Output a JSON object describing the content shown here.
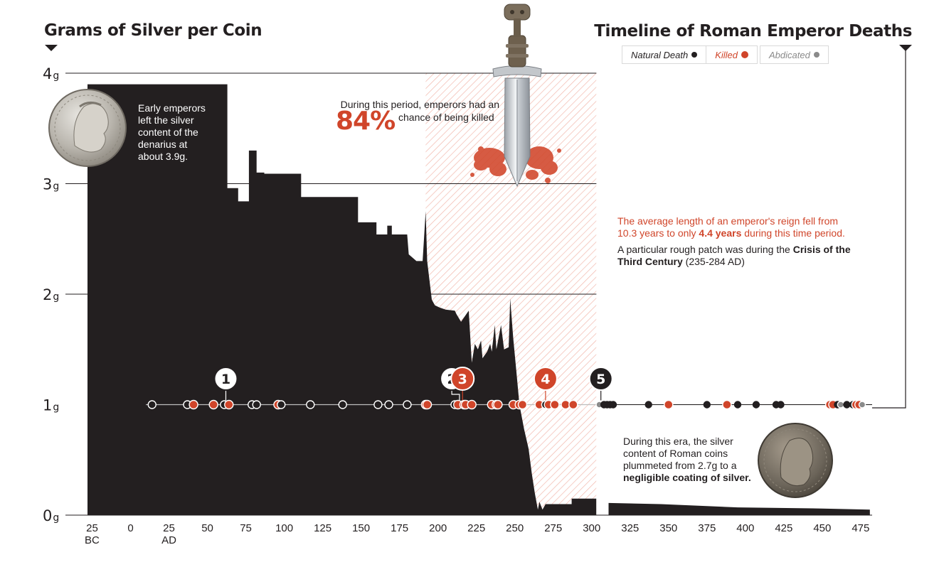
{
  "titles": {
    "left": "Grams of Silver per Coin",
    "right": "Timeline of Roman Emperor Deaths"
  },
  "legend": {
    "natural": "Natural Death",
    "killed": "Killed",
    "abdicated": "Abdicated"
  },
  "colors": {
    "area": "#231f20",
    "killed": "#d0452a",
    "natural": "#231f20",
    "abdicated": "#8a8a8a",
    "hatch": "#f2b8ad"
  },
  "annotations": {
    "early": "Early emperors left the silver content of the denarius at about 3.9g.",
    "period_line1": "During this period, emperors had an",
    "period_pct": "84%",
    "period_line2": "chance of being killed",
    "reign_red_a": "The average length of an emperor's reign fell from 10.3 years to only ",
    "reign_red_b": "4.4 years",
    "reign_red_c": " during this time period.",
    "crisis_a": "A particular rough patch was during the ",
    "crisis_b": "Crisis of the Third Century",
    "crisis_c": " (235-284 AD)",
    "era_a": "During this era, the silver content of Roman coins plummeted from 2.7g to a ",
    "era_b": "negligible coating of silver."
  },
  "markers": [
    {
      "label": "1",
      "year": 62,
      "style": "white"
    },
    {
      "label": "2",
      "year": 209,
      "style": "white"
    },
    {
      "label": "3",
      "year": 216,
      "style": "red"
    },
    {
      "label": "4",
      "year": 270,
      "style": "red"
    },
    {
      "label": "5",
      "year": 306,
      "style": "black"
    }
  ],
  "chart_data": {
    "type": "area",
    "title": "Grams of Silver per Coin",
    "ylabel": "Grams of Silver per Coin",
    "xlim": [
      -28,
      482
    ],
    "ylim": [
      0,
      4
    ],
    "y_ticks": [
      {
        "value": 0,
        "label": "0",
        "unit": "g"
      },
      {
        "value": 1,
        "label": "1",
        "unit": "g"
      },
      {
        "value": 2,
        "label": "2",
        "unit": "g"
      },
      {
        "value": 3,
        "label": "3",
        "unit": "g"
      },
      {
        "value": 4,
        "label": "4",
        "unit": "g"
      }
    ],
    "x_ticks": [
      {
        "value": -25,
        "label": "25",
        "sub": "BC"
      },
      {
        "value": 0,
        "label": "0",
        "sub": ""
      },
      {
        "value": 25,
        "label": "25",
        "sub": "AD"
      },
      {
        "value": 50,
        "label": "50",
        "sub": ""
      },
      {
        "value": 75,
        "label": "75",
        "sub": ""
      },
      {
        "value": 100,
        "label": "100",
        "sub": ""
      },
      {
        "value": 125,
        "label": "125",
        "sub": ""
      },
      {
        "value": 150,
        "label": "150",
        "sub": ""
      },
      {
        "value": 175,
        "label": "175",
        "sub": ""
      },
      {
        "value": 200,
        "label": "200",
        "sub": ""
      },
      {
        "value": 225,
        "label": "225",
        "sub": ""
      },
      {
        "value": 250,
        "label": "250",
        "sub": ""
      },
      {
        "value": 275,
        "label": "275",
        "sub": ""
      },
      {
        "value": 300,
        "label": "300",
        "sub": ""
      },
      {
        "value": 325,
        "label": "325",
        "sub": ""
      },
      {
        "value": 350,
        "label": "350",
        "sub": ""
      },
      {
        "value": 375,
        "label": "375",
        "sub": ""
      },
      {
        "value": 400,
        "label": "400",
        "sub": ""
      },
      {
        "value": 425,
        "label": "425",
        "sub": ""
      },
      {
        "value": 450,
        "label": "450",
        "sub": ""
      },
      {
        "value": 475,
        "label": "475",
        "sub": ""
      }
    ],
    "silver_series": {
      "name": "Grams of Silver per Coin",
      "points": [
        [
          -28,
          3.9
        ],
        [
          63,
          3.9
        ],
        [
          63,
          2.96
        ],
        [
          70,
          2.96
        ],
        [
          70,
          2.84
        ],
        [
          77,
          2.84
        ],
        [
          77,
          3.3
        ],
        [
          82,
          3.3
        ],
        [
          82,
          3.1
        ],
        [
          87,
          3.1
        ],
        [
          87,
          3.09
        ],
        [
          111,
          3.09
        ],
        [
          111,
          2.88
        ],
        [
          148,
          2.88
        ],
        [
          148,
          2.65
        ],
        [
          160,
          2.65
        ],
        [
          160,
          2.54
        ],
        [
          167,
          2.54
        ],
        [
          167,
          2.62
        ],
        [
          170,
          2.62
        ],
        [
          170,
          2.54
        ],
        [
          180,
          2.54
        ],
        [
          181,
          2.36
        ],
        [
          186,
          2.3
        ],
        [
          190,
          2.3
        ],
        [
          192,
          2.75
        ],
        [
          193,
          2.3
        ],
        [
          196,
          1.95
        ],
        [
          198,
          1.9
        ],
        [
          201,
          1.88
        ],
        [
          205,
          1.86
        ],
        [
          211,
          1.85
        ],
        [
          212,
          1.82
        ],
        [
          215,
          1.75
        ],
        [
          220,
          1.85
        ],
        [
          222,
          1.38
        ],
        [
          224,
          1.55
        ],
        [
          226,
          1.5
        ],
        [
          228,
          1.58
        ],
        [
          229,
          1.42
        ],
        [
          232,
          1.48
        ],
        [
          234,
          1.55
        ],
        [
          235,
          1.48
        ],
        [
          237,
          1.72
        ],
        [
          238,
          1.5
        ],
        [
          241,
          1.72
        ],
        [
          243,
          1.5
        ],
        [
          246,
          1.52
        ],
        [
          247,
          1.96
        ],
        [
          249,
          1.6
        ],
        [
          251,
          1.3
        ],
        [
          253,
          1.0
        ],
        [
          256,
          0.78
        ],
        [
          259,
          0.6
        ],
        [
          261,
          0.38
        ],
        [
          263,
          0.2
        ],
        [
          265,
          0.05
        ],
        [
          266,
          0.12
        ],
        [
          268,
          0.05
        ],
        [
          270,
          0.1
        ],
        [
          287,
          0.1
        ],
        [
          287,
          0.15
        ],
        [
          303,
          0.15
        ],
        [
          303,
          0.0
        ],
        [
          311,
          0.0
        ],
        [
          311,
          0.11
        ],
        [
          345,
          0.1
        ],
        [
          395,
          0.07
        ],
        [
          450,
          0.06
        ],
        [
          481,
          0.05
        ]
      ]
    },
    "emperor_deaths": [
      {
        "year": 14,
        "cause": "natural"
      },
      {
        "year": 37,
        "cause": "natural"
      },
      {
        "year": 41,
        "cause": "killed"
      },
      {
        "year": 54,
        "cause": "killed"
      },
      {
        "year": 61,
        "cause": "natural"
      },
      {
        "year": 64,
        "cause": "killed"
      },
      {
        "year": 79,
        "cause": "natural"
      },
      {
        "year": 82,
        "cause": "natural"
      },
      {
        "year": 96,
        "cause": "killed"
      },
      {
        "year": 98,
        "cause": "natural"
      },
      {
        "year": 117,
        "cause": "natural"
      },
      {
        "year": 138,
        "cause": "natural"
      },
      {
        "year": 161,
        "cause": "natural"
      },
      {
        "year": 168,
        "cause": "natural"
      },
      {
        "year": 180,
        "cause": "natural"
      },
      {
        "year": 192,
        "cause": "killed"
      },
      {
        "year": 193,
        "cause": "killed"
      },
      {
        "year": 211,
        "cause": "natural"
      },
      {
        "year": 213,
        "cause": "killed"
      },
      {
        "year": 217,
        "cause": "killed"
      },
      {
        "year": 218,
        "cause": "killed"
      },
      {
        "year": 222,
        "cause": "killed"
      },
      {
        "year": 235,
        "cause": "killed"
      },
      {
        "year": 238,
        "cause": "killed"
      },
      {
        "year": 239,
        "cause": "killed"
      },
      {
        "year": 249,
        "cause": "killed"
      },
      {
        "year": 253,
        "cause": "killed"
      },
      {
        "year": 255,
        "cause": "killed"
      },
      {
        "year": 266,
        "cause": "killed"
      },
      {
        "year": 270,
        "cause": "natural"
      },
      {
        "year": 272,
        "cause": "killed"
      },
      {
        "year": 276,
        "cause": "killed"
      },
      {
        "year": 283,
        "cause": "killed"
      },
      {
        "year": 288,
        "cause": "killed"
      },
      {
        "year": 305,
        "cause": "abdicated"
      },
      {
        "year": 308,
        "cause": "natural"
      },
      {
        "year": 310,
        "cause": "natural"
      },
      {
        "year": 312,
        "cause": "natural"
      },
      {
        "year": 314,
        "cause": "natural"
      },
      {
        "year": 337,
        "cause": "natural"
      },
      {
        "year": 350,
        "cause": "killed"
      },
      {
        "year": 375,
        "cause": "natural"
      },
      {
        "year": 388,
        "cause": "killed"
      },
      {
        "year": 395,
        "cause": "natural"
      },
      {
        "year": 407,
        "cause": "natural"
      },
      {
        "year": 420,
        "cause": "natural"
      },
      {
        "year": 423,
        "cause": "natural"
      },
      {
        "year": 455,
        "cause": "killed"
      },
      {
        "year": 457,
        "cause": "killed"
      },
      {
        "year": 460,
        "cause": "natural"
      },
      {
        "year": 462,
        "cause": "abdicated"
      },
      {
        "year": 466,
        "cause": "natural"
      },
      {
        "year": 470,
        "cause": "natural"
      },
      {
        "year": 472,
        "cause": "killed"
      },
      {
        "year": 474,
        "cause": "killed"
      },
      {
        "year": 476,
        "cause": "abdicated"
      }
    ]
  }
}
